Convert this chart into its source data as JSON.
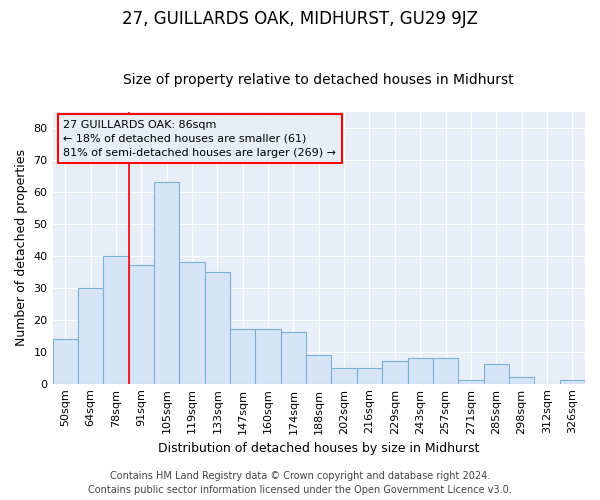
{
  "title": "27, GUILLARDS OAK, MIDHURST, GU29 9JZ",
  "subtitle": "Size of property relative to detached houses in Midhurst",
  "xlabel": "Distribution of detached houses by size in Midhurst",
  "ylabel": "Number of detached properties",
  "bar_labels": [
    "50sqm",
    "64sqm",
    "78sqm",
    "91sqm",
    "105sqm",
    "119sqm",
    "133sqm",
    "147sqm",
    "160sqm",
    "174sqm",
    "188sqm",
    "202sqm",
    "216sqm",
    "229sqm",
    "243sqm",
    "257sqm",
    "271sqm",
    "285sqm",
    "298sqm",
    "312sqm",
    "326sqm"
  ],
  "bar_values": [
    14,
    30,
    40,
    37,
    63,
    38,
    35,
    17,
    17,
    16,
    9,
    5,
    5,
    7,
    8,
    8,
    1,
    6,
    2,
    0,
    1
  ],
  "bar_color": "#d6e4f7",
  "bar_edge_color": "#7bafd4",
  "red_line_x": 2.5,
  "ylim": [
    0,
    85
  ],
  "yticks": [
    0,
    10,
    20,
    30,
    40,
    50,
    60,
    70,
    80
  ],
  "annotation_box_text": "27 GUILLARDS OAK: 86sqm\n← 18% of detached houses are smaller (61)\n81% of semi-detached houses are larger (269) →",
  "footer_line1": "Contains HM Land Registry data © Crown copyright and database right 2024.",
  "footer_line2": "Contains public sector information licensed under the Open Government Licence v3.0.",
  "background_color": "#ffffff",
  "plot_bg_color": "#e8eef8",
  "grid_color": "#ffffff",
  "title_fontsize": 12,
  "subtitle_fontsize": 10,
  "label_fontsize": 9,
  "tick_fontsize": 8,
  "annotation_fontsize": 8,
  "footer_fontsize": 7
}
